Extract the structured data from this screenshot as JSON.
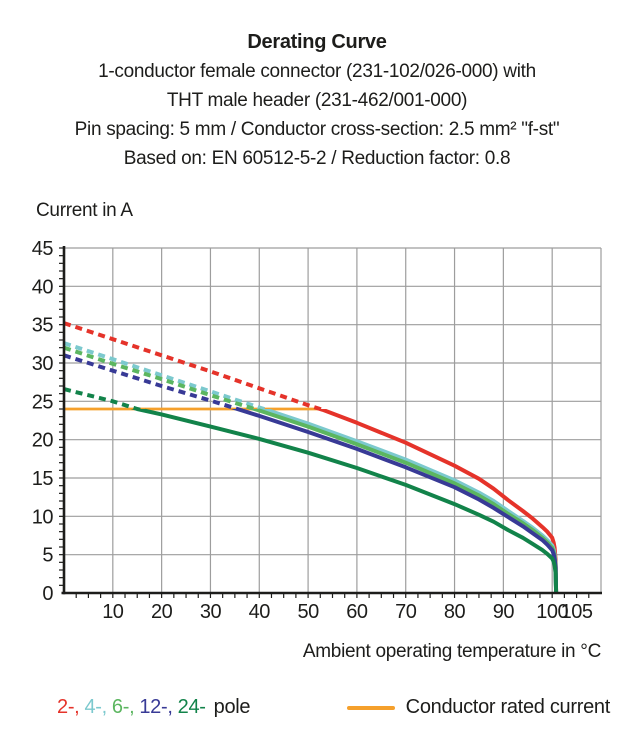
{
  "header": {
    "lines": [
      "Derating Curve",
      "1-conductor female connector (231-102/026-000) with",
      "THT male header (231-462/001-000)",
      "Pin spacing: 5 mm / Conductor cross-section: 2.5 mm² \"f-st\"",
      "Based on: EN 60512-5-2 / Reduction factor: 0.8"
    ]
  },
  "chart_data": {
    "type": "line",
    "title": "Derating Curve",
    "ylabel": "Current in A",
    "xlabel": "Ambient operating temperature in °C",
    "xlim": [
      0,
      110
    ],
    "ylim": [
      0,
      45
    ],
    "x_ticks": [
      10,
      20,
      30,
      40,
      50,
      60,
      70,
      80,
      90,
      100,
      105
    ],
    "x_gridlines": [
      10,
      20,
      30,
      40,
      50,
      60,
      70,
      80,
      90,
      100,
      110
    ],
    "y_ticks": [
      0,
      5,
      10,
      15,
      20,
      25,
      30,
      35,
      40,
      45
    ],
    "x_minor_step": 2.5,
    "y_minor_step": 1,
    "grid_on": true,
    "grid_color": "#9d9d9d",
    "axis_color": "#1d1d1b",
    "dash_above_rated": true,
    "rated_line": {
      "label": "Conductor rated current",
      "value": 24,
      "t_start": 0,
      "t_end": 52.5,
      "color": "#f5a02c"
    },
    "series": [
      {
        "name": "2-pole",
        "color": "#e5332a",
        "points": [
          [
            0,
            35.2
          ],
          [
            10,
            33.1
          ],
          [
            20,
            31.0
          ],
          [
            30,
            28.9
          ],
          [
            40,
            26.7
          ],
          [
            50,
            24.5
          ],
          [
            53,
            23.9
          ],
          [
            60,
            22.2
          ],
          [
            70,
            19.6
          ],
          [
            80,
            16.6
          ],
          [
            85,
            14.9
          ],
          [
            88,
            13.6
          ],
          [
            91,
            12.1
          ],
          [
            94,
            10.7
          ],
          [
            96,
            9.7
          ],
          [
            98,
            8.6
          ],
          [
            99,
            8.0
          ],
          [
            100,
            7.2
          ],
          [
            100.3,
            6.6
          ],
          [
            100.5,
            5.9
          ],
          [
            100.7,
            4.3
          ],
          [
            100.8,
            0
          ]
        ]
      },
      {
        "name": "4-pole",
        "color": "#7cc9ce",
        "points": [
          [
            0,
            32.6
          ],
          [
            10,
            30.5
          ],
          [
            20,
            28.4
          ],
          [
            30,
            26.3
          ],
          [
            40,
            24.2
          ],
          [
            41,
            24.0
          ],
          [
            50,
            22.1
          ],
          [
            60,
            19.8
          ],
          [
            70,
            17.4
          ],
          [
            80,
            14.7
          ],
          [
            85,
            13.1
          ],
          [
            88,
            12.0
          ],
          [
            91,
            10.7
          ],
          [
            94,
            9.4
          ],
          [
            96,
            8.5
          ],
          [
            98,
            7.5
          ],
          [
            99,
            6.9
          ],
          [
            100,
            6.2
          ],
          [
            100.3,
            5.7
          ],
          [
            100.5,
            5.1
          ],
          [
            100.7,
            3.7
          ],
          [
            100.8,
            0
          ]
        ]
      },
      {
        "name": "6-pole",
        "color": "#5cb660",
        "points": [
          [
            0,
            32.0
          ],
          [
            10,
            29.9
          ],
          [
            20,
            27.9
          ],
          [
            30,
            25.8
          ],
          [
            40,
            23.8
          ],
          [
            50,
            21.7
          ],
          [
            60,
            19.4
          ],
          [
            70,
            17.0
          ],
          [
            80,
            14.3
          ],
          [
            85,
            12.7
          ],
          [
            88,
            11.6
          ],
          [
            91,
            10.3
          ],
          [
            94,
            9.1
          ],
          [
            96,
            8.2
          ],
          [
            98,
            7.2
          ],
          [
            99,
            6.6
          ],
          [
            100,
            5.9
          ],
          [
            100.3,
            5.4
          ],
          [
            100.5,
            4.8
          ],
          [
            100.7,
            3.5
          ],
          [
            100.8,
            0
          ]
        ]
      },
      {
        "name": "12-pole",
        "color": "#383a96",
        "points": [
          [
            0,
            31.0
          ],
          [
            10,
            29.0
          ],
          [
            20,
            27.0
          ],
          [
            30,
            25.1
          ],
          [
            35,
            24.1
          ],
          [
            40,
            23.1
          ],
          [
            50,
            21.0
          ],
          [
            60,
            18.8
          ],
          [
            70,
            16.4
          ],
          [
            80,
            13.8
          ],
          [
            85,
            12.2
          ],
          [
            88,
            11.1
          ],
          [
            91,
            9.9
          ],
          [
            94,
            8.7
          ],
          [
            96,
            7.8
          ],
          [
            98,
            6.9
          ],
          [
            99,
            6.3
          ],
          [
            100,
            5.6
          ],
          [
            100.3,
            5.1
          ],
          [
            100.5,
            4.5
          ],
          [
            100.7,
            3.3
          ],
          [
            100.8,
            0
          ]
        ]
      },
      {
        "name": "24-pole",
        "color": "#12834a",
        "points": [
          [
            0,
            26.6
          ],
          [
            10,
            25.0
          ],
          [
            15,
            24.0
          ],
          [
            20,
            23.3
          ],
          [
            30,
            21.7
          ],
          [
            40,
            20.1
          ],
          [
            50,
            18.3
          ],
          [
            60,
            16.3
          ],
          [
            70,
            14.1
          ],
          [
            80,
            11.6
          ],
          [
            85,
            10.2
          ],
          [
            88,
            9.3
          ],
          [
            91,
            8.2
          ],
          [
            94,
            7.2
          ],
          [
            96,
            6.4
          ],
          [
            98,
            5.6
          ],
          [
            99,
            5.1
          ],
          [
            100,
            4.5
          ],
          [
            100.3,
            4.1
          ],
          [
            100.5,
            3.6
          ],
          [
            100.7,
            2.6
          ],
          [
            100.8,
            0
          ]
        ]
      }
    ]
  },
  "legend": {
    "poles": [
      {
        "label": "2-,",
        "color": "#e5332a"
      },
      {
        "label": "4-,",
        "color": "#7cc9ce"
      },
      {
        "label": "6-,",
        "color": "#5cb660"
      },
      {
        "label": "12-,",
        "color": "#383a96"
      },
      {
        "label": "24-",
        "color": "#12834a"
      }
    ],
    "poles_suffix": "pole",
    "rated_label": "Conductor rated current",
    "rated_color": "#f5a02c"
  }
}
